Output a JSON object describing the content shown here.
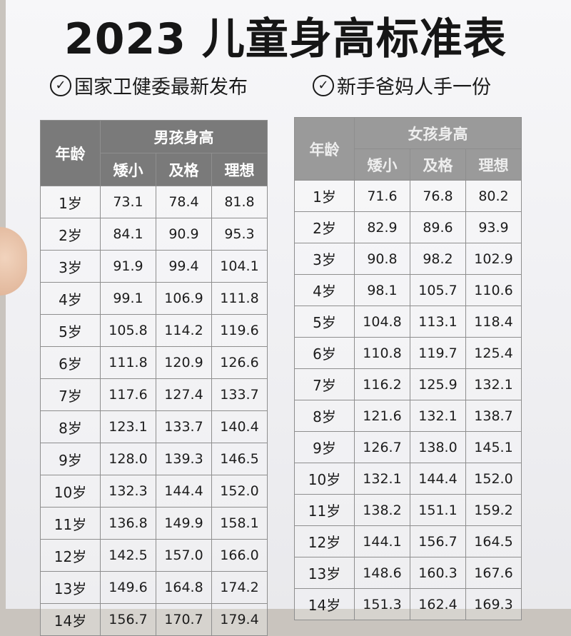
{
  "title": "2023 儿童身高标准表",
  "subtitles": {
    "left": "国家卫健委最新发布",
    "right": "新手爸妈人手一份"
  },
  "table_headers": {
    "age": "年龄",
    "boys_group": "男孩身高",
    "girls_group": "女孩身高",
    "short": "矮小",
    "pass": "及格",
    "ideal": "理想"
  },
  "boys": [
    {
      "age": "1岁",
      "short": "73.1",
      "pass": "78.4",
      "ideal": "81.8"
    },
    {
      "age": "2岁",
      "short": "84.1",
      "pass": "90.9",
      "ideal": "95.3"
    },
    {
      "age": "3岁",
      "short": "91.9",
      "pass": "99.4",
      "ideal": "104.1"
    },
    {
      "age": "4岁",
      "short": "99.1",
      "pass": "106.9",
      "ideal": "111.8"
    },
    {
      "age": "5岁",
      "short": "105.8",
      "pass": "114.2",
      "ideal": "119.6"
    },
    {
      "age": "6岁",
      "short": "111.8",
      "pass": "120.9",
      "ideal": "126.6"
    },
    {
      "age": "7岁",
      "short": "117.6",
      "pass": "127.4",
      "ideal": "133.7"
    },
    {
      "age": "8岁",
      "short": "123.1",
      "pass": "133.7",
      "ideal": "140.4"
    },
    {
      "age": "9岁",
      "short": "128.0",
      "pass": "139.3",
      "ideal": "146.5"
    },
    {
      "age": "10岁",
      "short": "132.3",
      "pass": "144.4",
      "ideal": "152.0"
    },
    {
      "age": "11岁",
      "short": "136.8",
      "pass": "149.9",
      "ideal": "158.1"
    },
    {
      "age": "12岁",
      "short": "142.5",
      "pass": "157.0",
      "ideal": "166.0"
    },
    {
      "age": "13岁",
      "short": "149.6",
      "pass": "164.8",
      "ideal": "174.2"
    },
    {
      "age": "14岁",
      "short": "156.7",
      "pass": "170.7",
      "ideal": "179.4"
    }
  ],
  "girls": [
    {
      "age": "1岁",
      "short": "71.6",
      "pass": "76.8",
      "ideal": "80.2"
    },
    {
      "age": "2岁",
      "short": "82.9",
      "pass": "89.6",
      "ideal": "93.9"
    },
    {
      "age": "3岁",
      "short": "90.8",
      "pass": "98.2",
      "ideal": "102.9"
    },
    {
      "age": "4岁",
      "short": "98.1",
      "pass": "105.7",
      "ideal": "110.6"
    },
    {
      "age": "5岁",
      "short": "104.8",
      "pass": "113.1",
      "ideal": "118.4"
    },
    {
      "age": "6岁",
      "short": "110.8",
      "pass": "119.7",
      "ideal": "125.4"
    },
    {
      "age": "7岁",
      "short": "116.2",
      "pass": "125.9",
      "ideal": "132.1"
    },
    {
      "age": "8岁",
      "short": "121.6",
      "pass": "132.1",
      "ideal": "138.7"
    },
    {
      "age": "9岁",
      "short": "126.7",
      "pass": "138.0",
      "ideal": "145.1"
    },
    {
      "age": "10岁",
      "short": "132.1",
      "pass": "144.4",
      "ideal": "152.0"
    },
    {
      "age": "11岁",
      "short": "138.2",
      "pass": "151.1",
      "ideal": "159.2"
    },
    {
      "age": "12岁",
      "short": "144.1",
      "pass": "156.7",
      "ideal": "164.5"
    },
    {
      "age": "13岁",
      "short": "148.6",
      "pass": "160.3",
      "ideal": "167.6"
    },
    {
      "age": "14岁",
      "short": "151.3",
      "pass": "162.4",
      "ideal": "169.3"
    }
  ]
}
